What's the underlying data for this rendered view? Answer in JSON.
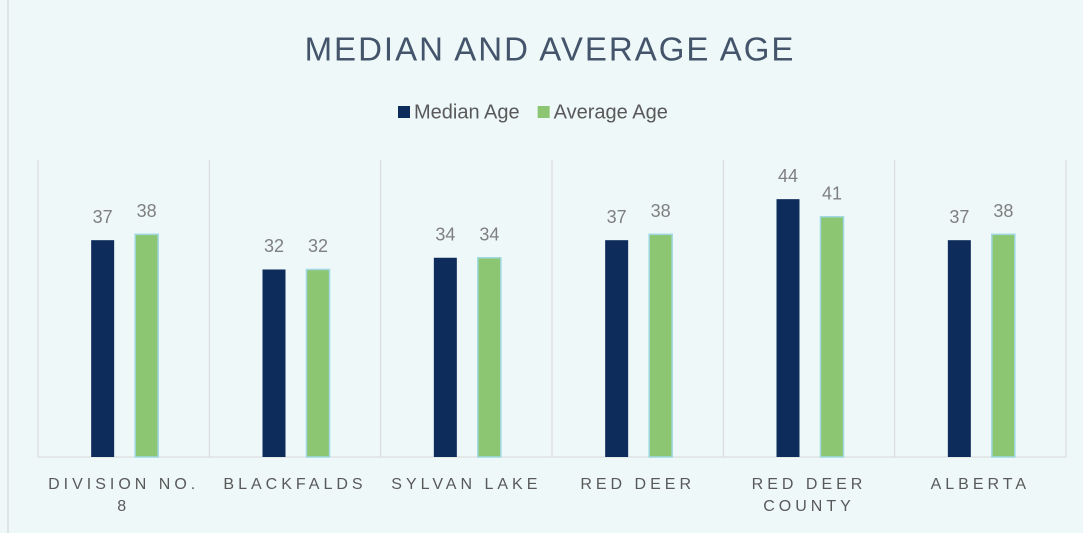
{
  "chart_data": {
    "type": "bar",
    "title": "MEDIAN AND AVERAGE AGE",
    "categories": [
      "DIVISION NO. 8",
      "BLACKFALDS",
      "SYLVAN LAKE",
      "RED DEER",
      "RED DEER COUNTY",
      "ALBERTA"
    ],
    "series": [
      {
        "name": "Median Age",
        "color": "#0d2b5b",
        "values": [
          37,
          32,
          34,
          37,
          44,
          37
        ]
      },
      {
        "name": "Average Age",
        "color": "#8dc672",
        "values": [
          38,
          32,
          34,
          38,
          41,
          38
        ]
      }
    ],
    "legend": "top"
  }
}
